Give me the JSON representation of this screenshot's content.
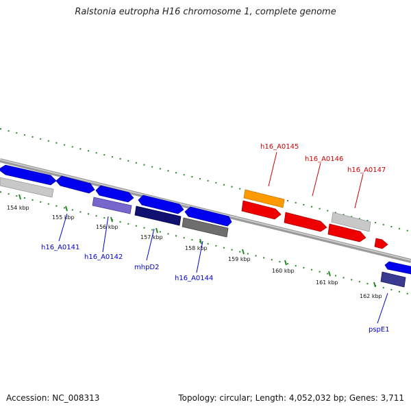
{
  "title": "Ralstonia eutropha H16 chromosome 1, complete genome",
  "footer": {
    "accession": "Accession: NC_008313",
    "summary": "Topology: circular; Length: 4,052,032 bp; Genes: 3,711"
  },
  "ticks": [
    "154 kbp",
    "155 kbp",
    "156 kbp",
    "157 kbp",
    "158 kbp",
    "159 kbp",
    "160 kbp",
    "161 kbp",
    "162 kbp"
  ],
  "colors": {
    "forward": "#0000ee",
    "reverse_red": "#ee0000",
    "orange": "#ff9900",
    "light_gray": "#c8c8c8",
    "dark_gray": "#6e6e6e",
    "lavender": "#7766cc",
    "navy": "#101070",
    "tick": "#228822",
    "label_blue": "#0000cc",
    "label_red": "#cc0000"
  },
  "gene_labels": {
    "blue": [
      "h16_A0141",
      "h16_A0142",
      "mhpD2",
      "h16_A0144",
      "pspE1"
    ],
    "red": [
      "h16_A0145",
      "h16_A0146",
      "h16_A0147"
    ]
  }
}
